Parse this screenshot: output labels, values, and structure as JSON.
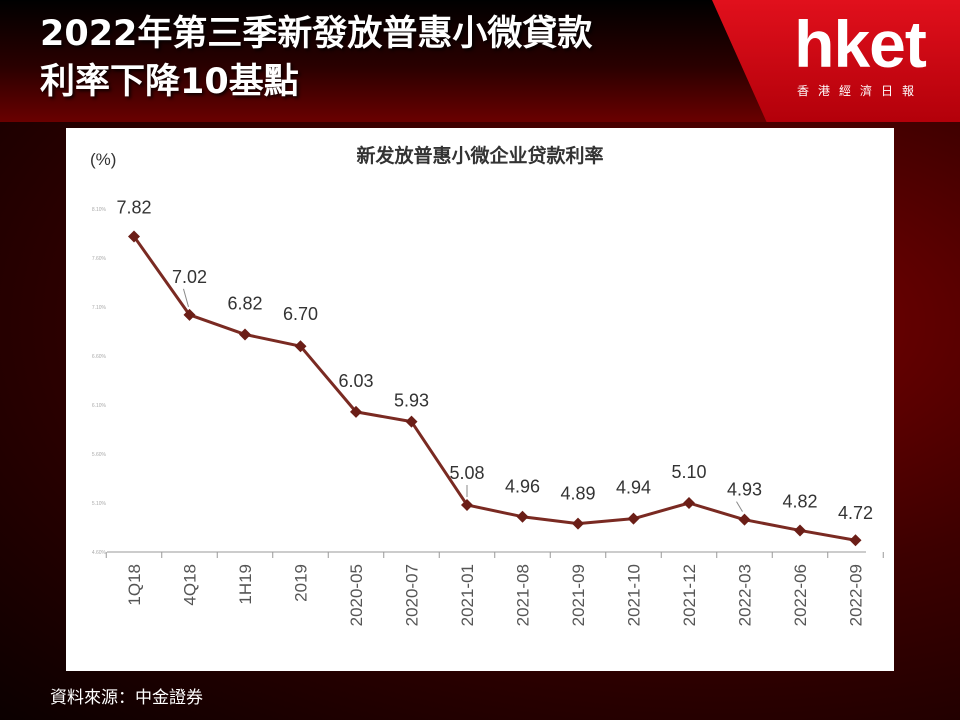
{
  "header": {
    "title_line1": "2022年第三季新發放普惠小微貸款",
    "title_line2": "利率下降10基點"
  },
  "logo": {
    "brand": "hket",
    "subtitle": "香港經濟日報"
  },
  "source": "資料來源：中金證券",
  "colors": {
    "line": "#7a2a22",
    "marker": "#6b1e17",
    "brand_red": "#e1101c"
  },
  "chart_data": {
    "type": "line",
    "title": "新发放普惠小微企业贷款利率",
    "ylabel": "(%)",
    "categories": [
      "1Q18",
      "4Q18",
      "1H19",
      "2019",
      "2020-05",
      "2020-07",
      "2021-01",
      "2021-08",
      "2021-09",
      "2021-10",
      "2021-12",
      "2022-03",
      "2022-06",
      "2022-09"
    ],
    "values": [
      7.82,
      7.02,
      6.82,
      6.7,
      6.03,
      5.93,
      5.08,
      4.96,
      4.89,
      4.94,
      5.1,
      4.93,
      4.82,
      4.72
    ],
    "value_labels": [
      "7.82",
      "7.02",
      "6.82",
      "6.70",
      "6.03",
      "5.93",
      "5.08",
      "4.96",
      "4.89",
      "4.94",
      "5.10",
      "4.93",
      "4.82",
      "4.72"
    ],
    "yticks": [
      "4.60%",
      "5.10%",
      "5.60%",
      "6.10%",
      "6.60%",
      "7.10%",
      "7.60%",
      "8.10%"
    ],
    "ytick_values": [
      4.6,
      5.1,
      5.6,
      6.1,
      6.6,
      7.1,
      7.6,
      8.1
    ],
    "ylim": [
      4.6,
      8.1
    ],
    "grid": false,
    "markers": "diamond"
  }
}
